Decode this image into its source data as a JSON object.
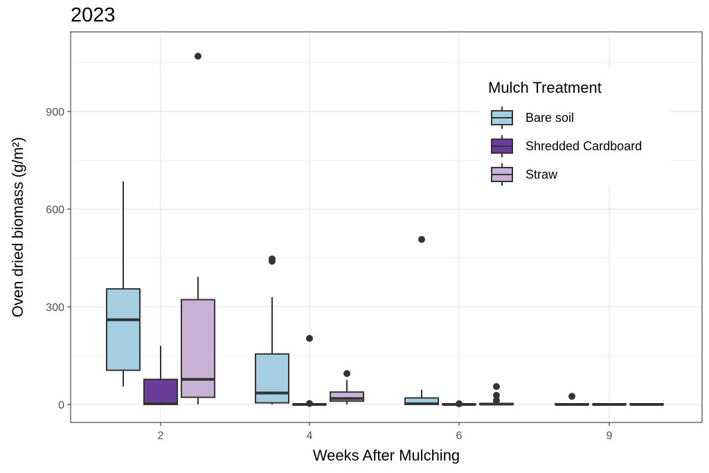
{
  "chart_data": {
    "type": "boxplot",
    "title": "2023",
    "xlabel": "Weeks After Mulching",
    "ylabel": "Oven dried biomass  (g/m²)",
    "ylim": [
      -50,
      1100
    ],
    "yticks": [
      0,
      300,
      600,
      900
    ],
    "categories": [
      "2",
      "4",
      "6",
      "9"
    ],
    "legend": {
      "title": "Mulch Treatment",
      "position": "top-right",
      "entries": [
        {
          "name": "Bare soil",
          "color": "#a6cee3"
        },
        {
          "name": "Shredded Cardboard",
          "color": "#6a3d9a"
        },
        {
          "name": "Straw",
          "color": "#cab2d6"
        }
      ]
    },
    "series": [
      {
        "name": "Bare soil",
        "color": "#a6cee3",
        "boxes": [
          {
            "category": "2",
            "whisker_low": 55,
            "q1": 105,
            "median": 260,
            "q3": 355,
            "whisker_high": 685,
            "outliers": []
          },
          {
            "category": "4",
            "whisker_low": 0,
            "q1": 5,
            "median": 35,
            "q3": 155,
            "whisker_high": 330,
            "outliers": [
              440,
              447
            ]
          },
          {
            "category": "6",
            "whisker_low": 0,
            "q1": 0,
            "median": 2,
            "q3": 20,
            "whisker_high": 45,
            "outliers": [
              507
            ]
          },
          {
            "category": "9",
            "whisker_low": 0,
            "q1": 0,
            "median": 0,
            "q3": 2,
            "whisker_high": 2,
            "outliers": [
              25
            ]
          }
        ]
      },
      {
        "name": "Shredded Cardboard",
        "color": "#6a3d9a",
        "boxes": [
          {
            "category": "2",
            "whisker_low": 0,
            "q1": 0,
            "median": 2,
            "q3": 77,
            "whisker_high": 180,
            "outliers": []
          },
          {
            "category": "4",
            "whisker_low": 0,
            "q1": 0,
            "median": 0,
            "q3": 1,
            "whisker_high": 1,
            "outliers": [
              3,
              203
            ]
          },
          {
            "category": "6",
            "whisker_low": 0,
            "q1": 0,
            "median": 0,
            "q3": 1,
            "whisker_high": 1,
            "outliers": [
              2
            ]
          },
          {
            "category": "9",
            "whisker_low": 0,
            "q1": 0,
            "median": 0,
            "q3": 1,
            "whisker_high": 1,
            "outliers": []
          }
        ]
      },
      {
        "name": "Straw",
        "color": "#cab2d6",
        "boxes": [
          {
            "category": "2",
            "whisker_low": 0,
            "q1": 22,
            "median": 77,
            "q3": 322,
            "whisker_high": 392,
            "outliers": [
              1070
            ]
          },
          {
            "category": "4",
            "whisker_low": 0,
            "q1": 10,
            "median": 18,
            "q3": 38,
            "whisker_high": 75,
            "outliers": [
              95
            ]
          },
          {
            "category": "6",
            "whisker_low": 0,
            "q1": 0,
            "median": 1,
            "q3": 3,
            "whisker_high": 5,
            "outliers": [
              12,
              28,
              55
            ]
          },
          {
            "category": "9",
            "whisker_low": 0,
            "q1": 0,
            "median": 0,
            "q3": 1,
            "whisker_high": 1,
            "outliers": []
          }
        ]
      }
    ]
  }
}
